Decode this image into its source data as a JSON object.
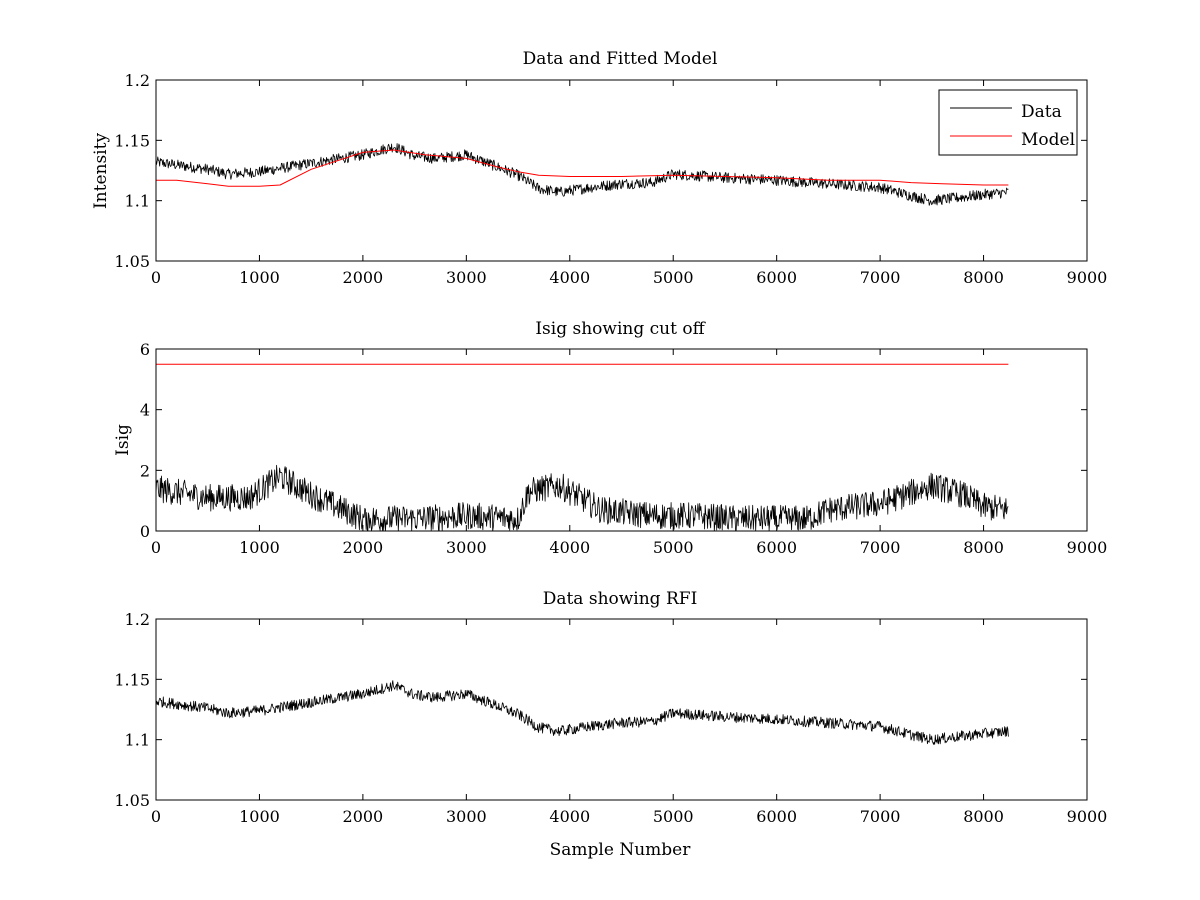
{
  "figure": {
    "background": "#ffffff",
    "axes_color": "#000000"
  },
  "chart_data": [
    {
      "type": "line",
      "title": "Data and Fitted Model",
      "xlabel": "",
      "ylabel": "Intensity",
      "xlim": [
        0,
        9000
      ],
      "ylim": [
        1.05,
        1.2
      ],
      "xticks": [
        "0",
        "1000",
        "2000",
        "3000",
        "4000",
        "5000",
        "6000",
        "7000",
        "8000",
        "9000"
      ],
      "yticks": [
        "1.05",
        "1.1",
        "1.15",
        "1.2"
      ],
      "ytick_values": [
        1.05,
        1.1,
        1.15,
        1.2
      ],
      "legend": {
        "position": "top-right",
        "entries": [
          "Data",
          "Model"
        ]
      },
      "series": [
        {
          "name": "Data",
          "color": "#000000",
          "noise": 0.0045,
          "x": [
            0,
            500,
            700,
            1000,
            1500,
            2000,
            2300,
            2500,
            2700,
            3000,
            3300,
            3500,
            3700,
            3900,
            4200,
            4500,
            4800,
            5000,
            5500,
            6000,
            6300,
            6500,
            7000,
            7300,
            7500,
            7800,
            8000,
            8240
          ],
          "values": [
            1.132,
            1.126,
            1.122,
            1.124,
            1.131,
            1.138,
            1.145,
            1.137,
            1.135,
            1.138,
            1.128,
            1.121,
            1.11,
            1.107,
            1.111,
            1.114,
            1.115,
            1.122,
            1.119,
            1.117,
            1.115,
            1.114,
            1.111,
            1.104,
            1.1,
            1.103,
            1.105,
            1.107
          ]
        },
        {
          "name": "Model",
          "color": "#ff0000",
          "noise": 0,
          "x": [
            0,
            200,
            500,
            700,
            1000,
            1200,
            1500,
            2000,
            2300,
            2600,
            3000,
            3300,
            3500,
            3700,
            4000,
            4500,
            5000,
            5500,
            6000,
            6500,
            7000,
            7300,
            7600,
            8000,
            8240
          ],
          "values": [
            1.117,
            1.117,
            1.114,
            1.112,
            1.112,
            1.113,
            1.126,
            1.14,
            1.142,
            1.138,
            1.135,
            1.128,
            1.124,
            1.121,
            1.12,
            1.12,
            1.121,
            1.12,
            1.119,
            1.117,
            1.117,
            1.115,
            1.114,
            1.113,
            1.113
          ]
        }
      ]
    },
    {
      "type": "line",
      "title": "Isig showing cut off",
      "xlabel": "",
      "ylabel": "Isig",
      "xlim": [
        0,
        9000
      ],
      "ylim": [
        0,
        6
      ],
      "xticks": [
        "0",
        "1000",
        "2000",
        "3000",
        "4000",
        "5000",
        "6000",
        "7000",
        "8000",
        "9000"
      ],
      "yticks": [
        "0",
        "2",
        "4",
        "6"
      ],
      "ytick_values": [
        0,
        2,
        4,
        6
      ],
      "series": [
        {
          "color": "#000000",
          "noise": 0.45,
          "clip_min": 0,
          "x": [
            0,
            500,
            900,
            1200,
            1500,
            2000,
            2500,
            3000,
            3500,
            3600,
            3900,
            4300,
            4800,
            5200,
            5600,
            6000,
            6300,
            6500,
            7000,
            7500,
            7800,
            8000,
            8240
          ],
          "values": [
            1.4,
            1.1,
            1.1,
            1.8,
            1.2,
            0.4,
            0.4,
            0.5,
            0.4,
            1.3,
            1.5,
            0.7,
            0.5,
            0.5,
            0.4,
            0.4,
            0.4,
            0.7,
            0.9,
            1.5,
            1.2,
            0.8,
            0.7
          ]
        },
        {
          "color": "#ff0000",
          "noise": 0,
          "x": [
            0,
            8240
          ],
          "values": [
            5.5,
            5.5
          ]
        }
      ]
    },
    {
      "type": "line",
      "title": "Data showing RFI",
      "xlabel": "Sample Number",
      "ylabel": "",
      "xlim": [
        0,
        9000
      ],
      "ylim": [
        1.05,
        1.2
      ],
      "xticks": [
        "0",
        "1000",
        "2000",
        "3000",
        "4000",
        "5000",
        "6000",
        "7000",
        "8000",
        "9000"
      ],
      "yticks": [
        "1.05",
        "1.1",
        "1.15",
        "1.2"
      ],
      "ytick_values": [
        1.05,
        1.1,
        1.15,
        1.2
      ],
      "series": [
        {
          "color": "#000000",
          "noise": 0.0045,
          "x": [
            0,
            500,
            700,
            1000,
            1500,
            2000,
            2300,
            2500,
            2700,
            3000,
            3300,
            3500,
            3700,
            3900,
            4200,
            4500,
            4800,
            5000,
            5500,
            6000,
            6300,
            6500,
            7000,
            7300,
            7500,
            7800,
            8000,
            8240
          ],
          "values": [
            1.132,
            1.126,
            1.122,
            1.124,
            1.131,
            1.138,
            1.145,
            1.137,
            1.135,
            1.138,
            1.128,
            1.121,
            1.11,
            1.107,
            1.111,
            1.114,
            1.115,
            1.122,
            1.119,
            1.117,
            1.115,
            1.114,
            1.111,
            1.104,
            1.1,
            1.103,
            1.105,
            1.107
          ]
        }
      ]
    }
  ]
}
